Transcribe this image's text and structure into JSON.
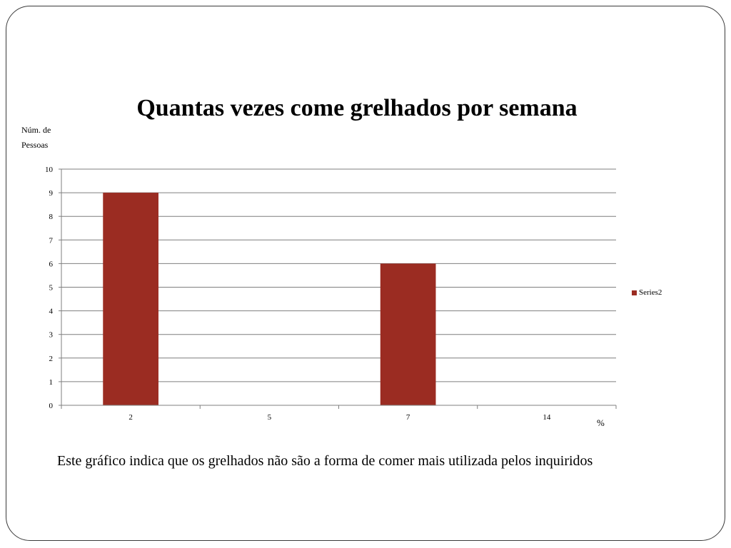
{
  "chart_data": {
    "type": "bar",
    "title": "Quantas vezes come grelhados por semana",
    "ylabel": "Núm. de Pessoas",
    "xlabel": "%",
    "categories": [
      "2",
      "5",
      "7",
      "14"
    ],
    "series": [
      {
        "name": "Series2",
        "values": [
          9,
          0,
          6,
          0
        ],
        "color": "#9b2c22"
      }
    ],
    "ylim": [
      0,
      10
    ],
    "yticks": [
      "0",
      "1",
      "2",
      "3",
      "4",
      "5",
      "6",
      "7",
      "8",
      "9",
      "10"
    ],
    "grid": true,
    "legend_position": "right"
  },
  "caption": "Este gráfico indica que os grelhados não são a forma de comer mais utilizada pelos inquiridos",
  "colors": {
    "gridline": "#7f7f7f",
    "bar": "#9b2c22"
  }
}
